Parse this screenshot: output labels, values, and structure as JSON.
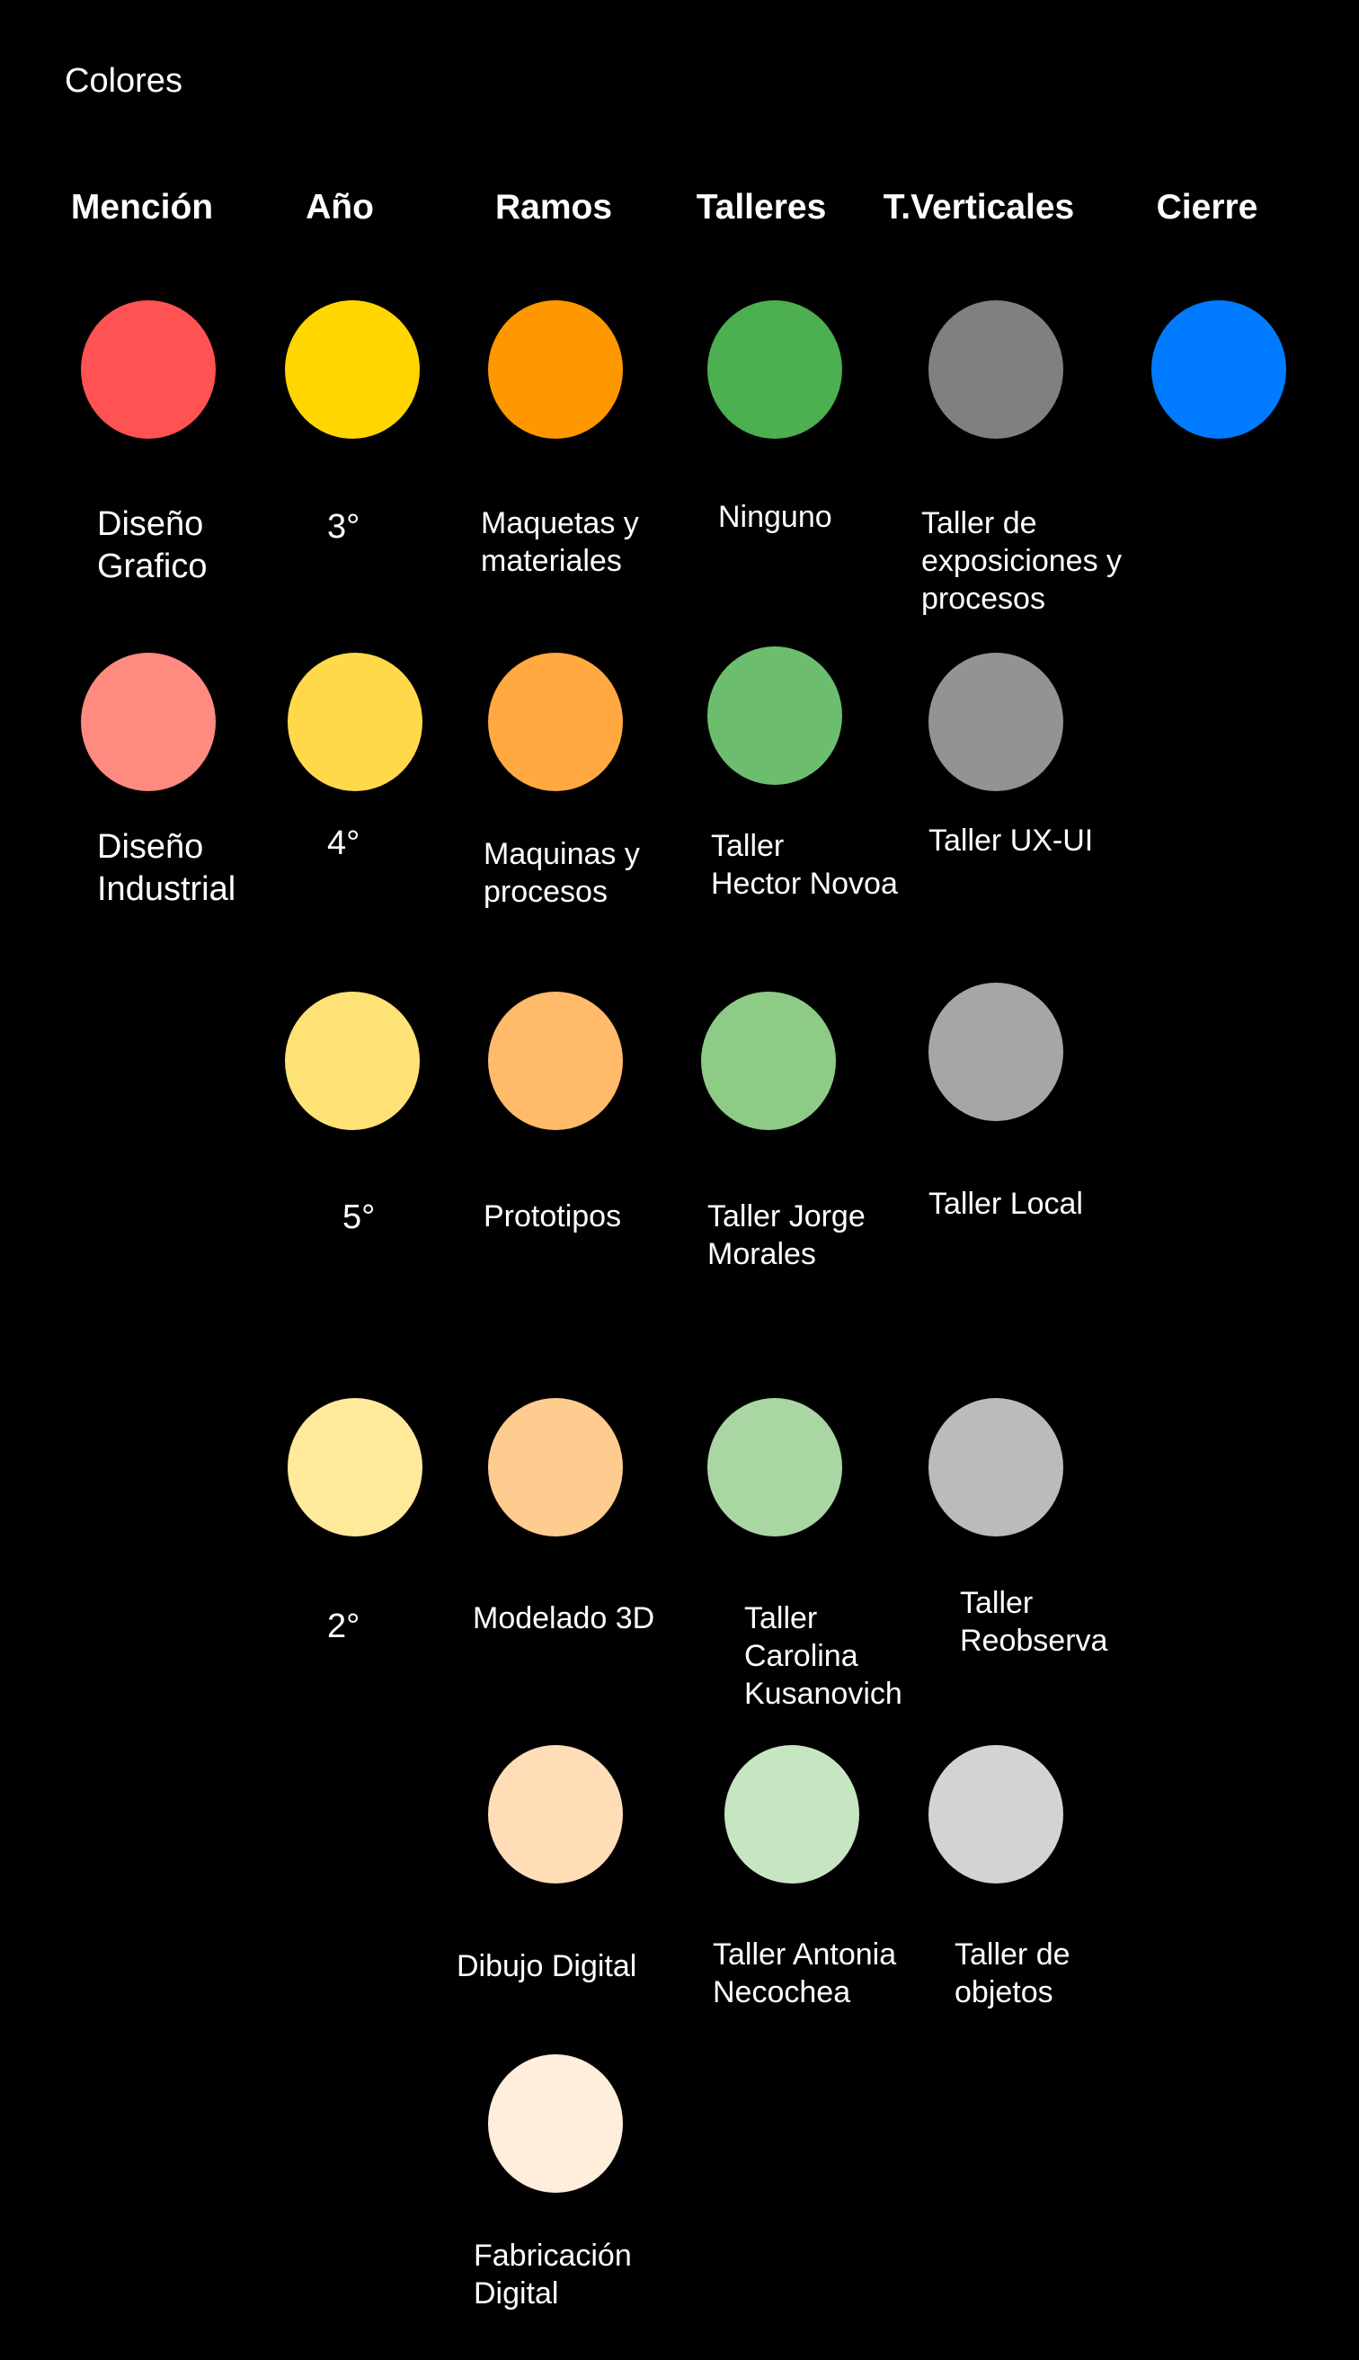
{
  "title": "Colores",
  "headers": {
    "mencion": "Mención",
    "anio": "Año",
    "ramos": "Ramos",
    "talleres": "Talleres",
    "verticales": "T.Verticales",
    "cierre": "Cierre"
  },
  "colors": {
    "diseno_grafico": "#FF5252",
    "diseno_industrial": "#FF8A80",
    "anio_3": "#FFD600",
    "anio_4": "#FFD94A",
    "anio_5": "#FFE276",
    "anio_2": "#FFE99A",
    "ramo_maquetas": "#FF9800",
    "ramo_maquinas": "#FFA940",
    "ramo_prototipos": "#FFBA6A",
    "ramo_modelado": "#FFCC90",
    "ramo_dibujo": "#FFDDB7",
    "ramo_fabricacion": "#FFEEDB",
    "taller_ninguno": "#4CAF50",
    "taller_hector": "#6CBE6E",
    "taller_jorge": "#8DCB87",
    "taller_carolina": "#A9D6A3",
    "taller_antonia": "#C6E5C1",
    "vertical_exposiciones": "#808080",
    "vertical_uxui": "#939393",
    "vertical_local": "#A6A6A6",
    "vertical_reobserva": "#BBBBBB",
    "vertical_objetos": "#D3D3D3",
    "cierre": "#007BFF"
  },
  "labels": {
    "diseno_grafico": "Diseño\nGrafico",
    "diseno_industrial": "Diseño\nIndustrial",
    "anio_3": "3°",
    "anio_4": "4°",
    "anio_5": "5°",
    "anio_2": "2°",
    "ramo_maquetas": "Maquetas y\nmateriales",
    "ramo_maquinas": "Maquinas y\nprocesos",
    "ramo_prototipos": "Prototipos",
    "ramo_modelado": "Modelado 3D",
    "ramo_dibujo": "Dibujo Digital",
    "ramo_fabricacion": "Fabricación\nDigital",
    "taller_ninguno": "Ninguno",
    "taller_hector": "Taller\nHector Novoa",
    "taller_jorge": "Taller Jorge\nMorales",
    "taller_carolina": "Taller\nCarolina\nKusanovich",
    "taller_antonia": "Taller Antonia\nNecochea",
    "vertical_exposiciones": "Taller de\nexposiciones y\nprocesos",
    "vertical_uxui": "Taller UX-UI",
    "vertical_local": "Taller Local",
    "vertical_reobserva": "Taller\nReobserva",
    "vertical_objetos": "Taller de\nobjetos"
  }
}
